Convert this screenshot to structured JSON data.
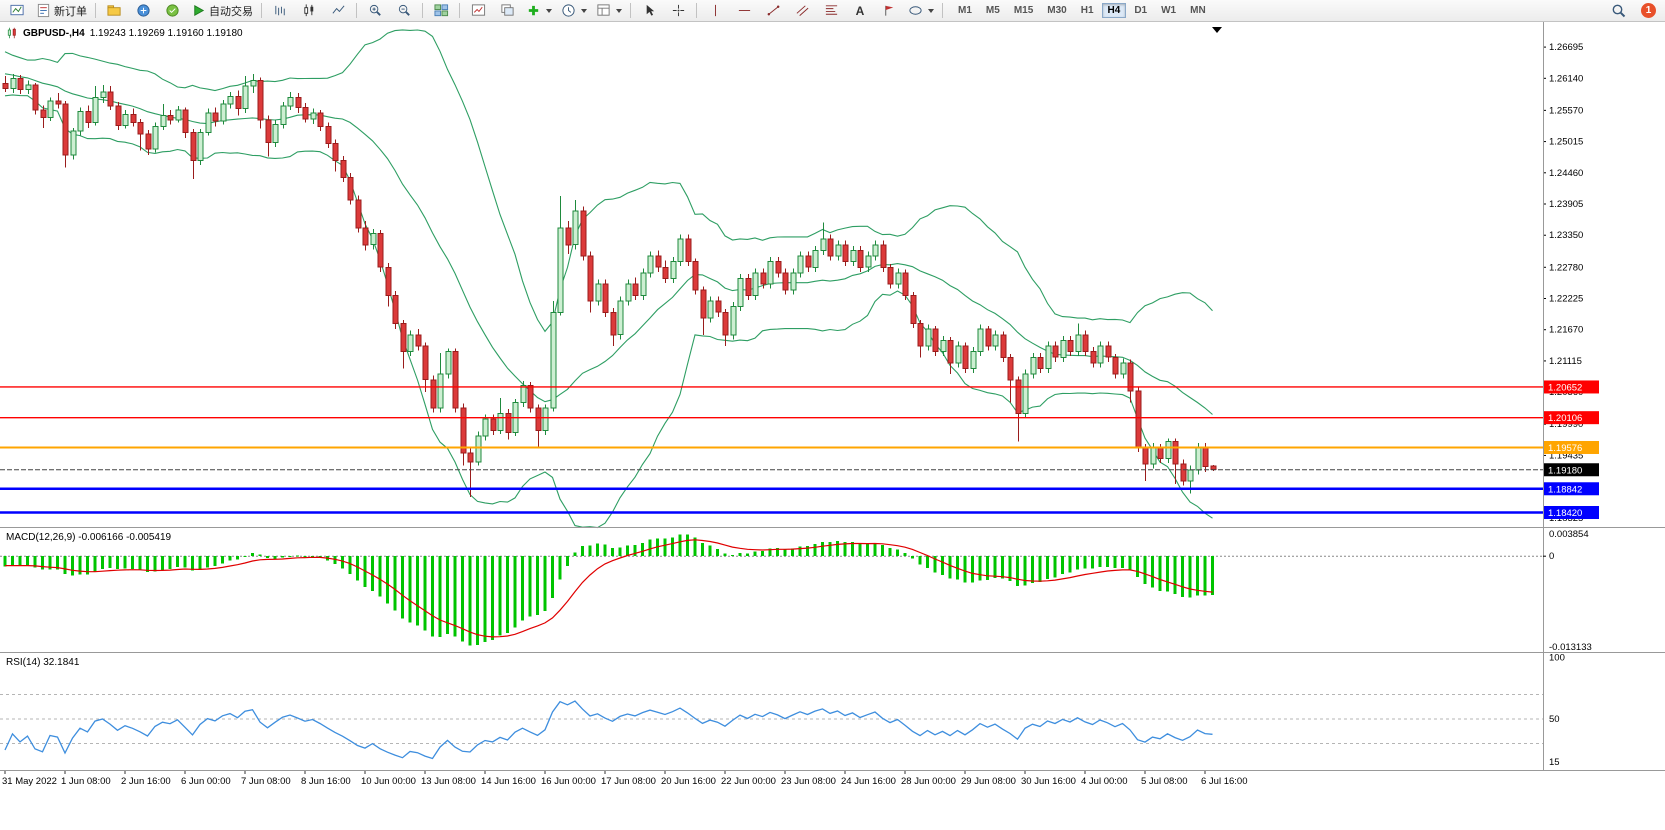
{
  "toolbar": {
    "buttons": {
      "new_order": "新订单",
      "autotrading": "自动交易"
    },
    "text_tool_glyph": "A",
    "timeframes": [
      "M1",
      "M5",
      "M15",
      "M30",
      "H1",
      "H4",
      "D1",
      "W1",
      "MN"
    ],
    "active_timeframe": "H4",
    "notification_badge": "1"
  },
  "header": {
    "symbol": "GBPUSD-,H4",
    "ohlc": "1.19243 1.19269 1.19160 1.19180"
  },
  "indicators": {
    "macd": {
      "label": "MACD(12,26,9) -0.006166 -0.005419"
    },
    "rsi": {
      "label": "RSI(14) 32.1841"
    }
  },
  "chart_data": {
    "type": "candlestick",
    "symbol": "GBPUSD-",
    "timeframe": "H4",
    "ohlc_current": [
      1.19243,
      1.19269,
      1.1916,
      1.1918
    ],
    "price_axis_labels": [
      "1.26695",
      "1.26140",
      "1.25570",
      "1.25015",
      "1.24460",
      "1.23905",
      "1.23350",
      "1.22780",
      "1.22225",
      "1.21670",
      "1.21115",
      "1.20560",
      "1.19990",
      "1.19435",
      "1.18880",
      "1.18325"
    ],
    "horizontal_lines": [
      {
        "price": 1.20652,
        "label": "1.20652",
        "color": "#FF0000",
        "width": 1.4
      },
      {
        "price": 1.20106,
        "label": "1.20106",
        "color": "#FF0000",
        "width": 1.4
      },
      {
        "price": 1.19576,
        "label": "1.19576",
        "color": "#FFA500",
        "width": 2
      },
      {
        "price": 1.18842,
        "label": "1.18842",
        "color": "#0000FF",
        "width": 2.5
      },
      {
        "price": 1.1842,
        "label": "1.18420",
        "color": "#0000FF",
        "width": 2.5
      }
    ],
    "current_price": 1.1918,
    "current_price_label": "1.19180",
    "time_labels": [
      [
        0,
        "31 May 2022"
      ],
      [
        8,
        "1 Jun 08:00"
      ],
      [
        16,
        "2 Jun 16:00"
      ],
      [
        24,
        "6 Jun 00:00"
      ],
      [
        32,
        "7 Jun 08:00"
      ],
      [
        40,
        "8 Jun 16:00"
      ],
      [
        48,
        "10 Jun 00:00"
      ],
      [
        56,
        "13 Jun 08:00"
      ],
      [
        64,
        "14 Jun 16:00"
      ],
      [
        72,
        "16 Jun 00:00"
      ],
      [
        80,
        "17 Jun 08:00"
      ],
      [
        88,
        "20 Jun 16:00"
      ],
      [
        96,
        "22 Jun 00:00"
      ],
      [
        104,
        "23 Jun 08:00"
      ],
      [
        112,
        "24 Jun 16:00"
      ],
      [
        120,
        "28 Jun 00:00"
      ],
      [
        128,
        "29 Jun 08:00"
      ],
      [
        136,
        "30 Jun 16:00"
      ],
      [
        144,
        "4 Jul 00:00"
      ],
      [
        152,
        "5 Jul 08:00"
      ],
      [
        160,
        "6 Jul 16:00"
      ]
    ],
    "bollinger": {
      "period": 20,
      "deviation": 2
    },
    "macd": {
      "params": [
        12,
        26,
        9
      ],
      "current": [
        -0.006166,
        -0.005419
      ],
      "scale_labels": [
        "0.003854",
        "0",
        "-0.013133"
      ]
    },
    "rsi": {
      "period": 14,
      "current": 32.1841,
      "levels": [
        70,
        50,
        30
      ],
      "scale_labels": [
        "100",
        "50",
        "15"
      ]
    },
    "colors": {
      "up": "#CDEFD2",
      "up_border": "#1F8A3D",
      "down": "#DC3A3A",
      "down_border": "#9A1C1C",
      "bollinger": "#2E9E63",
      "macd_hist": "#00C400",
      "macd_signal": "#E00000",
      "rsi_line": "#3E8EDE"
    },
    "warmup_closes": [
      1.2665,
      1.266,
      1.2652,
      1.2645,
      1.265,
      1.264,
      1.2632,
      1.2638,
      1.2628,
      1.262,
      1.2625,
      1.2615,
      1.261,
      1.2618,
      1.2608,
      1.26,
      1.2605,
      1.2598,
      1.2602,
      1.26
    ],
    "candles": [
      [
        1.2605,
        1.2618,
        1.259,
        1.2596
      ],
      [
        1.2596,
        1.2622,
        1.2588,
        1.2614
      ],
      [
        1.2614,
        1.262,
        1.2586,
        1.2594
      ],
      [
        1.2594,
        1.261,
        1.2586,
        1.2602
      ],
      [
        1.2602,
        1.2606,
        1.255,
        1.2558
      ],
      [
        1.2558,
        1.2566,
        1.2526,
        1.2544
      ],
      [
        1.2544,
        1.258,
        1.2538,
        1.2574
      ],
      [
        1.2574,
        1.2588,
        1.256,
        1.2568
      ],
      [
        1.2568,
        1.2574,
        1.2455,
        1.2478
      ],
      [
        1.2478,
        1.2526,
        1.247,
        1.252
      ],
      [
        1.252,
        1.2562,
        1.2512,
        1.2555
      ],
      [
        1.2555,
        1.2566,
        1.2526,
        1.2535
      ],
      [
        1.2535,
        1.26,
        1.253,
        1.258
      ],
      [
        1.258,
        1.2602,
        1.257,
        1.259
      ],
      [
        1.259,
        1.26,
        1.2558,
        1.2565
      ],
      [
        1.2565,
        1.2572,
        1.2522,
        1.253
      ],
      [
        1.253,
        1.2558,
        1.2525,
        1.255
      ],
      [
        1.255,
        1.256,
        1.2528,
        1.2535
      ],
      [
        1.2535,
        1.2542,
        1.2486,
        1.2515
      ],
      [
        1.2515,
        1.2522,
        1.2478,
        1.2488
      ],
      [
        1.2488,
        1.2535,
        1.2482,
        1.2528
      ],
      [
        1.2528,
        1.2568,
        1.2522,
        1.2548
      ],
      [
        1.2548,
        1.2558,
        1.2532,
        1.254
      ],
      [
        1.254,
        1.2565,
        1.2535,
        1.2558
      ],
      [
        1.2558,
        1.2562,
        1.2508,
        1.2518
      ],
      [
        1.2518,
        1.2524,
        1.2435,
        1.2468
      ],
      [
        1.2468,
        1.2524,
        1.246,
        1.2518
      ],
      [
        1.2518,
        1.256,
        1.2512,
        1.2552
      ],
      [
        1.2552,
        1.2562,
        1.2528,
        1.2538
      ],
      [
        1.2538,
        1.2575,
        1.2532,
        1.2568
      ],
      [
        1.2568,
        1.259,
        1.256,
        1.2582
      ],
      [
        1.2582,
        1.2592,
        1.2548,
        1.256
      ],
      [
        1.256,
        1.2618,
        1.2552,
        1.26
      ],
      [
        1.26,
        1.2622,
        1.2588,
        1.261
      ],
      [
        1.261,
        1.2615,
        1.2525,
        1.254
      ],
      [
        1.254,
        1.2548,
        1.2475,
        1.25
      ],
      [
        1.25,
        1.254,
        1.2492,
        1.2532
      ],
      [
        1.2532,
        1.2572,
        1.2525,
        1.2565
      ],
      [
        1.2565,
        1.259,
        1.2558,
        1.258
      ],
      [
        1.258,
        1.2588,
        1.2552,
        1.2562
      ],
      [
        1.2562,
        1.257,
        1.2535,
        1.2542
      ],
      [
        1.2542,
        1.256,
        1.2533,
        1.2552
      ],
      [
        1.2552,
        1.2558,
        1.252,
        1.2528
      ],
      [
        1.2528,
        1.2535,
        1.249,
        1.2498
      ],
      [
        1.2498,
        1.2505,
        1.2448,
        1.2468
      ],
      [
        1.2468,
        1.2476,
        1.243,
        1.2438
      ],
      [
        1.2438,
        1.2446,
        1.239,
        1.2398
      ],
      [
        1.2398,
        1.2406,
        1.234,
        1.2348
      ],
      [
        1.2348,
        1.236,
        1.2308,
        1.2318
      ],
      [
        1.2318,
        1.2346,
        1.231,
        1.2338
      ],
      [
        1.2338,
        1.2344,
        1.227,
        1.2278
      ],
      [
        1.2278,
        1.2286,
        1.2208,
        1.2228
      ],
      [
        1.2228,
        1.2236,
        1.2168,
        1.2178
      ],
      [
        1.2178,
        1.2184,
        1.2098,
        1.2128
      ],
      [
        1.2128,
        1.2166,
        1.212,
        1.2158
      ],
      [
        1.2158,
        1.2168,
        1.213,
        1.2138
      ],
      [
        1.2138,
        1.2144,
        1.2056,
        1.2078
      ],
      [
        1.2078,
        1.2086,
        1.202,
        1.2028
      ],
      [
        1.2028,
        1.2126,
        1.202,
        1.2088
      ],
      [
        1.2088,
        1.2134,
        1.208,
        1.2128
      ],
      [
        1.2128,
        1.2134,
        1.202,
        1.2028
      ],
      [
        1.2028,
        1.2036,
        1.1926,
        1.1948
      ],
      [
        1.1948,
        1.1956,
        1.187,
        1.1932
      ],
      [
        1.1932,
        1.1986,
        1.1926,
        1.1978
      ],
      [
        1.1978,
        1.2016,
        1.197,
        1.2008
      ],
      [
        1.2008,
        1.2016,
        1.198,
        1.1988
      ],
      [
        1.1988,
        1.2046,
        1.1982,
        1.2018
      ],
      [
        1.2018,
        1.2026,
        1.1972,
        1.1984
      ],
      [
        1.1984,
        1.2044,
        1.1978,
        1.2038
      ],
      [
        1.2038,
        1.2076,
        1.203,
        1.2068
      ],
      [
        1.2068,
        1.2074,
        1.202,
        1.2028
      ],
      [
        1.2028,
        1.2034,
        1.1958,
        1.1988
      ],
      [
        1.1988,
        1.2034,
        1.198,
        1.2028
      ],
      [
        1.2028,
        1.2218,
        1.2022,
        1.2198
      ],
      [
        1.2198,
        1.2405,
        1.2192,
        1.2348
      ],
      [
        1.2348,
        1.236,
        1.2302,
        1.2318
      ],
      [
        1.2318,
        1.2398,
        1.231,
        1.2378
      ],
      [
        1.2378,
        1.2386,
        1.229,
        1.2298
      ],
      [
        1.2298,
        1.2306,
        1.2198,
        1.2218
      ],
      [
        1.2218,
        1.2256,
        1.221,
        1.2248
      ],
      [
        1.2248,
        1.2256,
        1.219,
        1.2198
      ],
      [
        1.2198,
        1.2206,
        1.2138,
        1.2158
      ],
      [
        1.2158,
        1.2226,
        1.215,
        1.2218
      ],
      [
        1.2218,
        1.2256,
        1.221,
        1.2248
      ],
      [
        1.2248,
        1.226,
        1.222,
        1.2228
      ],
      [
        1.2228,
        1.2276,
        1.222,
        1.2268
      ],
      [
        1.2268,
        1.2306,
        1.226,
        1.2298
      ],
      [
        1.2298,
        1.2308,
        1.227,
        1.2278
      ],
      [
        1.2278,
        1.229,
        1.225,
        1.2258
      ],
      [
        1.2258,
        1.2296,
        1.225,
        1.2288
      ],
      [
        1.2288,
        1.2336,
        1.228,
        1.2328
      ],
      [
        1.2328,
        1.2336,
        1.228,
        1.2288
      ],
      [
        1.2288,
        1.2294,
        1.223,
        1.2238
      ],
      [
        1.2238,
        1.2244,
        1.2158,
        1.2188
      ],
      [
        1.2188,
        1.2226,
        1.218,
        1.2218
      ],
      [
        1.2218,
        1.2226,
        1.219,
        1.2198
      ],
      [
        1.2198,
        1.2204,
        1.2138,
        1.2158
      ],
      [
        1.2158,
        1.2216,
        1.215,
        1.2208
      ],
      [
        1.2208,
        1.2266,
        1.22,
        1.2258
      ],
      [
        1.2258,
        1.2266,
        1.222,
        1.2228
      ],
      [
        1.2228,
        1.2276,
        1.222,
        1.2268
      ],
      [
        1.2268,
        1.2276,
        1.224,
        1.2248
      ],
      [
        1.2248,
        1.2296,
        1.224,
        1.2288
      ],
      [
        1.2288,
        1.2296,
        1.226,
        1.2268
      ],
      [
        1.2268,
        1.2276,
        1.223,
        1.2238
      ],
      [
        1.2238,
        1.2276,
        1.223,
        1.2268
      ],
      [
        1.2268,
        1.2306,
        1.226,
        1.2298
      ],
      [
        1.2298,
        1.2306,
        1.227,
        1.2278
      ],
      [
        1.2278,
        1.2316,
        1.227,
        1.2308
      ],
      [
        1.2308,
        1.2358,
        1.23,
        1.2328
      ],
      [
        1.2328,
        1.2336,
        1.229,
        1.2298
      ],
      [
        1.2298,
        1.2326,
        1.229,
        1.2318
      ],
      [
        1.2318,
        1.2326,
        1.228,
        1.2288
      ],
      [
        1.2288,
        1.2316,
        1.228,
        1.2308
      ],
      [
        1.2308,
        1.2316,
        1.227,
        1.2278
      ],
      [
        1.2278,
        1.2306,
        1.227,
        1.2298
      ],
      [
        1.2298,
        1.2326,
        1.229,
        1.2318
      ],
      [
        1.2318,
        1.2326,
        1.227,
        1.2278
      ],
      [
        1.2278,
        1.2284,
        1.224,
        1.2248
      ],
      [
        1.2248,
        1.2276,
        1.224,
        1.2268
      ],
      [
        1.2268,
        1.2274,
        1.222,
        1.2228
      ],
      [
        1.2228,
        1.2234,
        1.217,
        1.2178
      ],
      [
        1.2178,
        1.2184,
        1.2118,
        1.2138
      ],
      [
        1.2138,
        1.2176,
        1.213,
        1.2168
      ],
      [
        1.2168,
        1.2174,
        1.212,
        1.2128
      ],
      [
        1.2128,
        1.2156,
        1.212,
        1.2148
      ],
      [
        1.2148,
        1.2154,
        1.2088,
        1.2108
      ],
      [
        1.2108,
        1.2146,
        1.21,
        1.2138
      ],
      [
        1.2138,
        1.2144,
        1.209,
        1.2098
      ],
      [
        1.2098,
        1.2136,
        1.209,
        1.2128
      ],
      [
        1.2128,
        1.2176,
        1.212,
        1.2168
      ],
      [
        1.2168,
        1.2174,
        1.213,
        1.2138
      ],
      [
        1.2138,
        1.2166,
        1.213,
        1.2158
      ],
      [
        1.2158,
        1.2164,
        1.211,
        1.2118
      ],
      [
        1.2118,
        1.2124,
        1.2038,
        1.2078
      ],
      [
        1.2078,
        1.2084,
        1.1968,
        1.2018
      ],
      [
        1.2018,
        1.2096,
        1.201,
        1.2088
      ],
      [
        1.2088,
        1.2126,
        1.208,
        1.2118
      ],
      [
        1.2118,
        1.2126,
        1.209,
        1.2098
      ],
      [
        1.2098,
        1.2146,
        1.209,
        1.2138
      ],
      [
        1.2138,
        1.2146,
        1.211,
        1.2118
      ],
      [
        1.2118,
        1.2156,
        1.211,
        1.2148
      ],
      [
        1.2148,
        1.2156,
        1.212,
        1.2128
      ],
      [
        1.2128,
        1.2178,
        1.212,
        1.2158
      ],
      [
        1.2158,
        1.2166,
        1.212,
        1.2128
      ],
      [
        1.2128,
        1.2136,
        1.21,
        1.2108
      ],
      [
        1.2108,
        1.2146,
        1.21,
        1.2138
      ],
      [
        1.2138,
        1.2146,
        1.211,
        1.2118
      ],
      [
        1.2118,
        1.2124,
        1.208,
        1.2088
      ],
      [
        1.2088,
        1.2116,
        1.208,
        1.2108
      ],
      [
        1.2108,
        1.2114,
        1.2038,
        1.2058
      ],
      [
        1.2058,
        1.2064,
        1.195,
        1.1958
      ],
      [
        1.1958,
        1.1964,
        1.1898,
        1.1928
      ],
      [
        1.1928,
        1.1966,
        1.192,
        1.1958
      ],
      [
        1.1958,
        1.1964,
        1.193,
        1.1938
      ],
      [
        1.1938,
        1.1974,
        1.193,
        1.1968
      ],
      [
        1.1968,
        1.1974,
        1.1893,
        1.1928
      ],
      [
        1.1928,
        1.1936,
        1.189,
        1.1898
      ],
      [
        1.1898,
        1.1926,
        1.1876,
        1.1918
      ],
      [
        1.1918,
        1.1966,
        1.191,
        1.1958
      ],
      [
        1.1958,
        1.1966,
        1.1914,
        1.1924
      ],
      [
        1.19243,
        1.19269,
        1.1916,
        1.1918
      ]
    ]
  }
}
